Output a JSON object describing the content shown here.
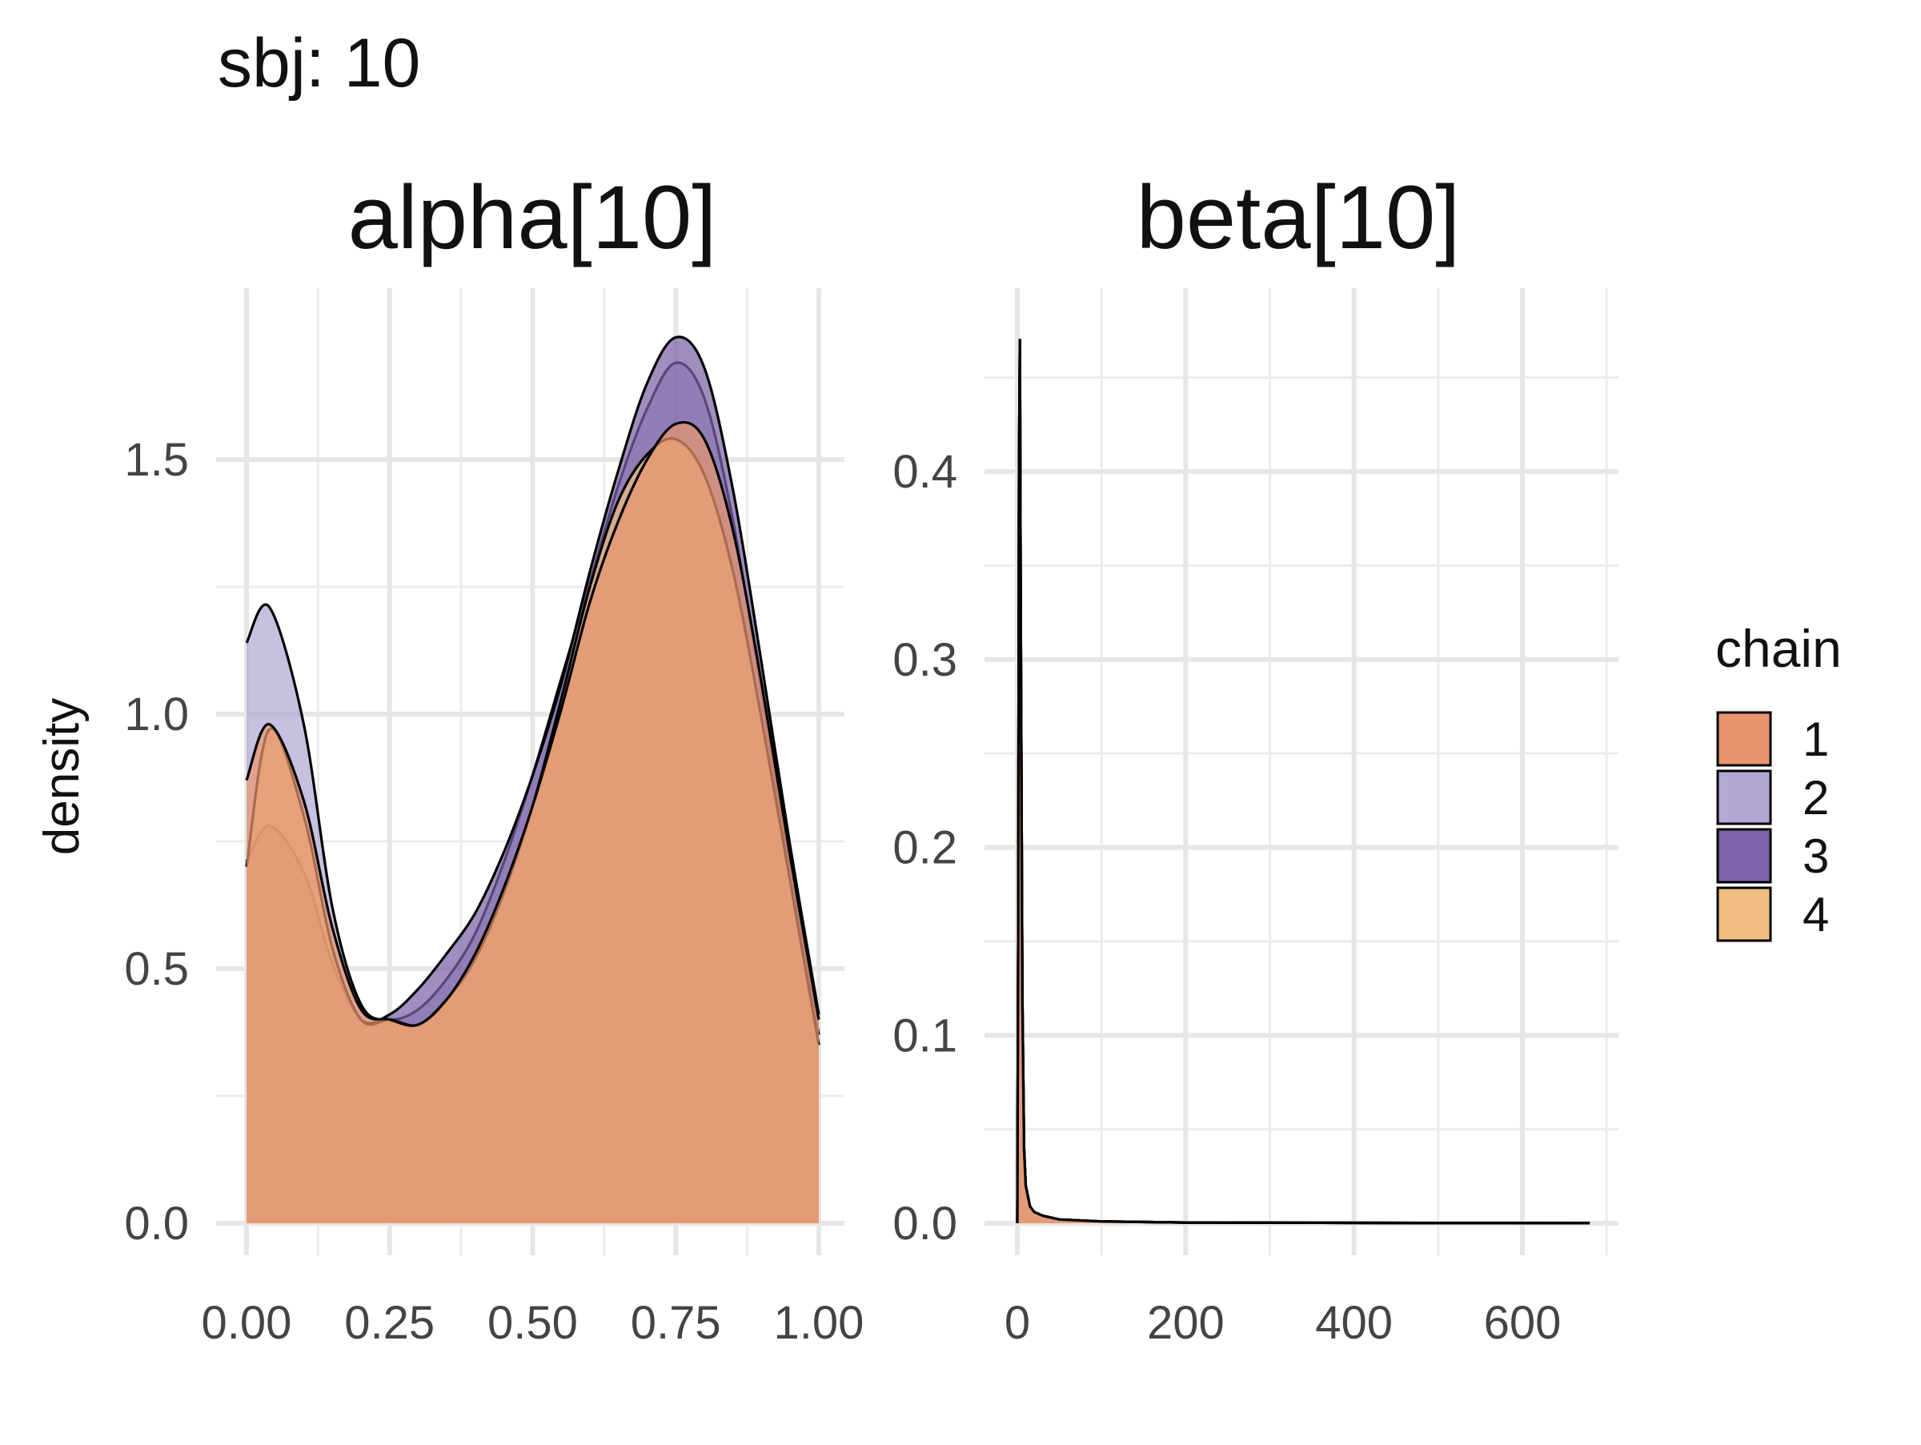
{
  "title": "sbj: 10",
  "ylabel": "density",
  "legend": {
    "title": "chain",
    "items": [
      {
        "label": "1",
        "color": "#E8956E"
      },
      {
        "label": "2",
        "color": "#B3A8D4"
      },
      {
        "label": "3",
        "color": "#7C62A6"
      },
      {
        "label": "4",
        "color": "#F2BD80"
      }
    ]
  },
  "chart_data": [
    {
      "type": "area",
      "title": "alpha[10]",
      "xlabel": "",
      "ylabel": "density",
      "xlim": [
        0,
        1
      ],
      "ylim": [
        0,
        1.7
      ],
      "x_ticks": [
        "0.00",
        "0.25",
        "0.50",
        "0.75",
        "1.00"
      ],
      "y_ticks": [
        "0.0",
        "0.5",
        "1.0",
        "1.5"
      ],
      "grid": true,
      "x": [
        0,
        0.04,
        0.1,
        0.15,
        0.2,
        0.25,
        0.3,
        0.35,
        0.4,
        0.45,
        0.5,
        0.55,
        0.6,
        0.65,
        0.7,
        0.75,
        0.8,
        0.85,
        0.9,
        0.95,
        1.0
      ],
      "series": [
        {
          "name": "1",
          "values": [
            0.87,
            0.98,
            0.83,
            0.58,
            0.42,
            0.4,
            0.39,
            0.44,
            0.53,
            0.66,
            0.82,
            1.01,
            1.22,
            1.38,
            1.5,
            1.57,
            1.54,
            1.36,
            1.06,
            0.72,
            0.4
          ]
        },
        {
          "name": "2",
          "values": [
            1.14,
            1.21,
            0.98,
            0.62,
            0.43,
            0.4,
            0.42,
            0.48,
            0.57,
            0.71,
            0.88,
            1.07,
            1.26,
            1.45,
            1.6,
            1.69,
            1.62,
            1.38,
            1.04,
            0.69,
            0.37
          ]
        },
        {
          "name": "3",
          "values": [
            0.71,
            0.78,
            0.69,
            0.51,
            0.4,
            0.41,
            0.46,
            0.53,
            0.61,
            0.73,
            0.88,
            1.06,
            1.28,
            1.48,
            1.65,
            1.74,
            1.68,
            1.44,
            1.1,
            0.74,
            0.41
          ]
        },
        {
          "name": "4",
          "values": [
            0.7,
            0.97,
            0.8,
            0.54,
            0.4,
            0.4,
            0.39,
            0.44,
            0.52,
            0.65,
            0.82,
            1.03,
            1.25,
            1.42,
            1.51,
            1.54,
            1.47,
            1.28,
            0.99,
            0.67,
            0.35
          ]
        }
      ]
    },
    {
      "type": "area",
      "title": "beta[10]",
      "xlabel": "",
      "ylabel": "",
      "xlim": [
        0,
        685
      ],
      "ylim": [
        0,
        0.47
      ],
      "x_ticks": [
        "0",
        "200",
        "400",
        "600"
      ],
      "y_ticks": [
        "0.0",
        "0.1",
        "0.2",
        "0.3",
        "0.4"
      ],
      "grid": true,
      "x": [
        0,
        1,
        2,
        3,
        4,
        6,
        8,
        10,
        15,
        20,
        30,
        50,
        100,
        200,
        400,
        680
      ],
      "series": [
        {
          "name": "1",
          "values": [
            0.0,
            0.15,
            0.4,
            0.47,
            0.33,
            0.12,
            0.04,
            0.02,
            0.009,
            0.006,
            0.004,
            0.002,
            0.001,
            0.0004,
            0.0002,
            0.0001
          ]
        },
        {
          "name": "2",
          "values": [
            0.0,
            0.15,
            0.4,
            0.47,
            0.33,
            0.12,
            0.04,
            0.02,
            0.009,
            0.006,
            0.004,
            0.002,
            0.001,
            0.0004,
            0.0002,
            0.0001
          ]
        },
        {
          "name": "3",
          "values": [
            0.0,
            0.15,
            0.4,
            0.47,
            0.33,
            0.12,
            0.04,
            0.02,
            0.009,
            0.006,
            0.004,
            0.002,
            0.001,
            0.0004,
            0.0002,
            0.0001
          ]
        },
        {
          "name": "4",
          "values": [
            0.0,
            0.15,
            0.4,
            0.47,
            0.33,
            0.12,
            0.04,
            0.02,
            0.009,
            0.006,
            0.004,
            0.002,
            0.001,
            0.0004,
            0.0002,
            0.0001
          ]
        }
      ]
    }
  ]
}
